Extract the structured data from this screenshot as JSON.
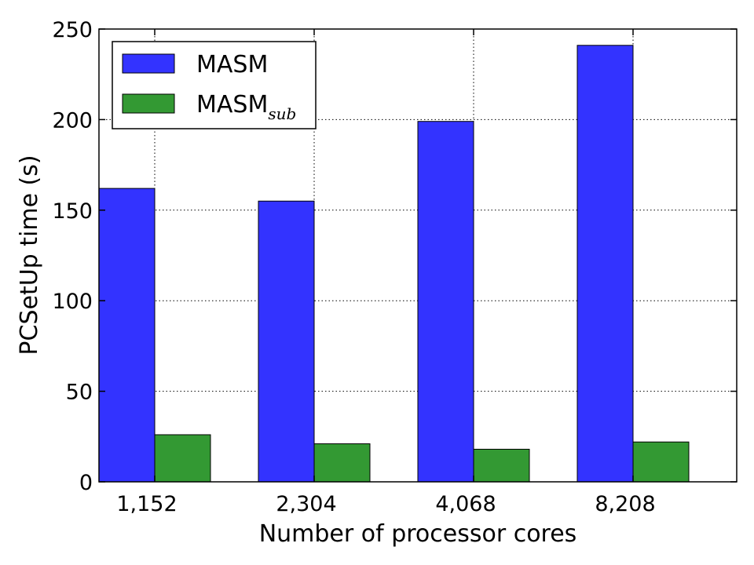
{
  "chart_data": {
    "type": "bar",
    "title": "",
    "xlabel": "Number of processor cores",
    "ylabel": "PCSetUp time (s)",
    "categories": [
      "1,152",
      "2,304",
      "4,068",
      "8,208"
    ],
    "ylim": [
      0,
      250
    ],
    "yticks": [
      0,
      50,
      100,
      150,
      200,
      250
    ],
    "ytick_labels": [
      "0",
      "50",
      "100",
      "150",
      "200",
      "250"
    ],
    "grid": true,
    "legend_position": "top-left",
    "series": [
      {
        "name": "MASM",
        "name_sub": "",
        "color": "#3333ff",
        "values": [
          162,
          155,
          199,
          241
        ]
      },
      {
        "name": "MASM",
        "name_sub": "sub",
        "color": "#339933",
        "values": [
          26,
          21,
          18,
          22
        ]
      }
    ]
  }
}
